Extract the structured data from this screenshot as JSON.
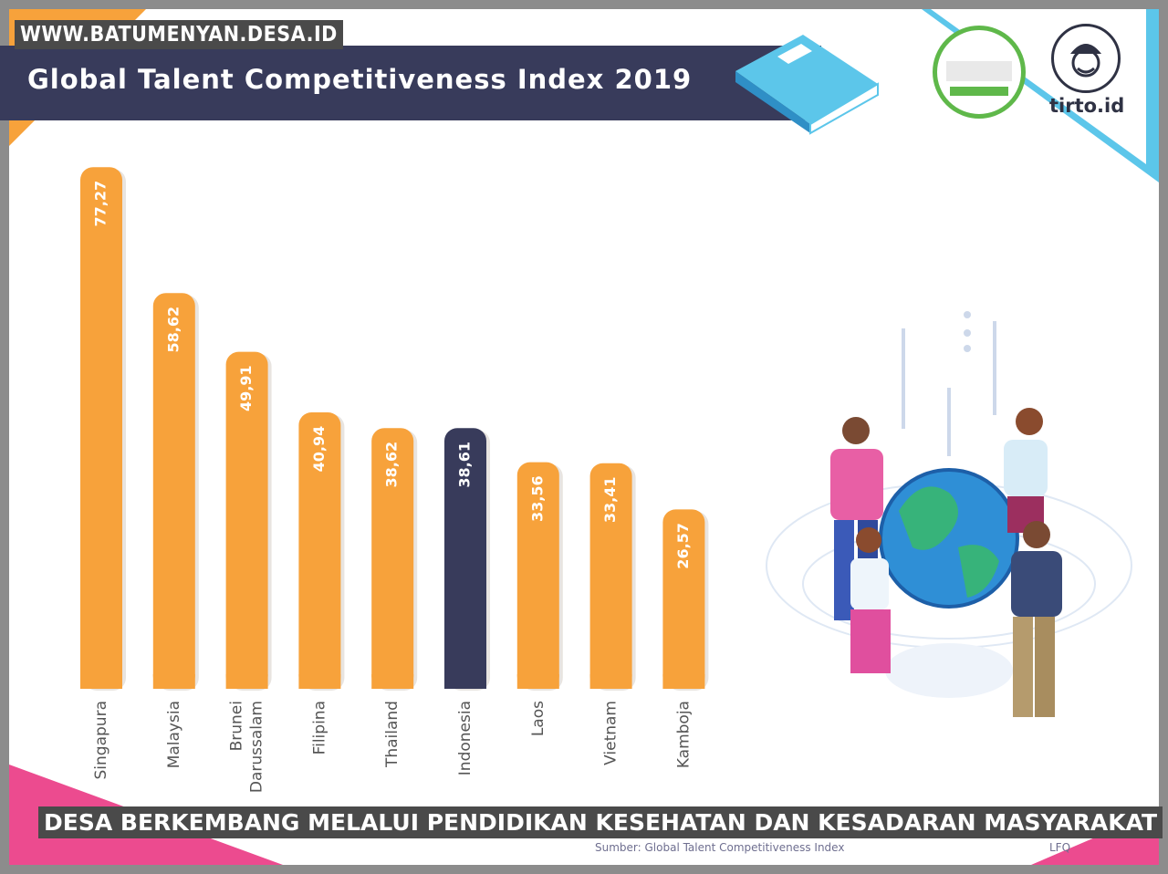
{
  "website": "WWW.BATUMENYAN.DESA.ID",
  "caption": "DESA BERKEMBANG MELALUI PENDIDIKAN KESEHATAN DAN KESADARAN MASYARAKAT",
  "source": "Sumber: Global Talent Competitiveness Index",
  "logo_text": "tirto.id",
  "footer_right": "LFQ",
  "colors": {
    "bar": "#f7a23b",
    "highlight_bar": "#383b5b",
    "label": "#555555"
  },
  "icons": [
    "book-icon",
    "verification-badge-icon",
    "tirto-logo-icon",
    "globe-people-illustration"
  ],
  "chart_data": {
    "type": "bar",
    "title": "Global Talent Competitiveness Index 2019",
    "categories": [
      "Singapura",
      "Malaysia",
      "Brunei Darussalam",
      "Filipina",
      "Thailand",
      "Indonesia",
      "Laos",
      "Vietnam",
      "Kamboja"
    ],
    "category_lines": [
      [
        "Singapura"
      ],
      [
        "Malaysia"
      ],
      [
        "Brunei",
        "Darussalam"
      ],
      [
        "Filipina"
      ],
      [
        "Thailand"
      ],
      [
        "Indonesia"
      ],
      [
        "Laos"
      ],
      [
        "Vietnam"
      ],
      [
        "Kamboja"
      ]
    ],
    "values": [
      77.27,
      58.62,
      49.91,
      40.94,
      38.62,
      38.61,
      33.56,
      33.41,
      26.57
    ],
    "value_labels": [
      "77,27",
      "58,62",
      "49,91",
      "40,94",
      "38,62",
      "38,61",
      "33,56",
      "33,41",
      "26,57"
    ],
    "highlight": "Indonesia",
    "grid": false,
    "xlabel": "",
    "ylabel": ""
  }
}
